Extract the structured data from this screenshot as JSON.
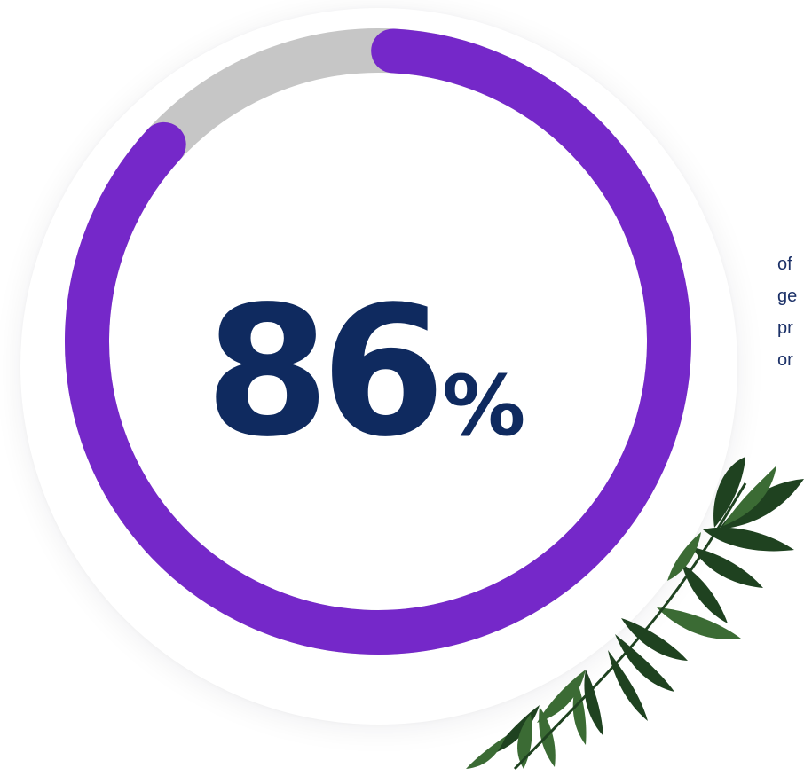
{
  "stat": {
    "value": "86",
    "unit": "%",
    "progress_fraction": 0.86
  },
  "colors": {
    "progress": "#7528c9",
    "track": "#c6c6c6",
    "stat_text": "#0f2a5f",
    "caption_text": "#1c3168",
    "leaf_dark": "#1f4220",
    "leaf_mid": "#3b6b34"
  },
  "caption": {
    "lines": [
      "of",
      "ge",
      "pr",
      "or"
    ]
  },
  "decor": {
    "icon": "palm-leaves-illustration"
  }
}
